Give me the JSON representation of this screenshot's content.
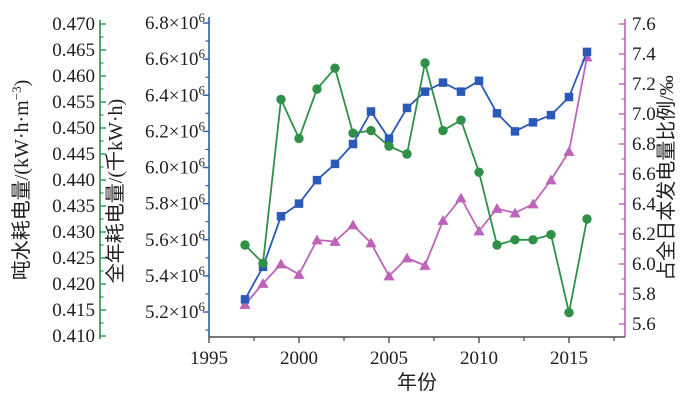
{
  "figure": {
    "background": "#ffffff",
    "text_color": "#1f1f1f",
    "bottom_axis_color": "#4d4d4d"
  },
  "chart_data": {
    "type": "line",
    "title": "",
    "grid": false,
    "legend": false,
    "xlabel": "年份",
    "x_axis": {
      "min": 1995,
      "max": 2018.1,
      "major_ticks": [
        1995,
        2000,
        2005,
        2010,
        2015
      ],
      "tick_labels": [
        "1995",
        "2000",
        "2005",
        "2010",
        "2015"
      ],
      "minor_interval": 2.5
    },
    "years": [
      1997,
      1998,
      1999,
      2000,
      2001,
      2002,
      2003,
      2004,
      2005,
      2006,
      2007,
      2008,
      2009,
      2010,
      2011,
      2012,
      2013,
      2014,
      2015,
      2016
    ],
    "axes": {
      "left_outer": {
        "title_parts": [
          [
            "吨水耗电量/(kW·h·m",
            false
          ],
          [
            "−3",
            true
          ],
          [
            ")",
            false
          ]
        ],
        "min": 0.41,
        "max": 0.47,
        "step": 0.005,
        "decimals": 3,
        "color": "#2f9048"
      },
      "left_inner": {
        "title_parts": [
          [
            "全年耗电量/(千kW·h)",
            false
          ]
        ],
        "min": 5.2,
        "max": 6.8,
        "step": 0.2,
        "decimals": 1,
        "scale_suffix": "×10",
        "exponent": "6",
        "color": "#2b59b7"
      },
      "right": {
        "title_parts": [
          [
            "占全日本发电量比例/‰",
            false
          ]
        ],
        "min": 5.6,
        "max": 7.6,
        "step": 0.2,
        "decimals": 1,
        "color": "#bd63ba"
      }
    },
    "series": [
      {
        "id": "share-of-japan-generation",
        "name": "占全日本发电量比例",
        "axis": "right",
        "marker": "triangle",
        "color": "#bd63ba",
        "values": [
          5.73,
          5.87,
          6.0,
          5.93,
          6.16,
          6.15,
          6.26,
          6.14,
          5.92,
          6.04,
          5.99,
          6.29,
          6.44,
          6.22,
          6.37,
          6.34,
          6.4,
          6.56,
          6.75,
          7.38
        ]
      },
      {
        "id": "annual-power-consumption",
        "name": "全年耗电量",
        "axis": "left_inner",
        "marker": "square",
        "color": "#2b59b7",
        "values": [
          5.27,
          5.45,
          5.73,
          5.8,
          5.93,
          6.02,
          6.13,
          6.31,
          6.16,
          6.33,
          6.42,
          6.47,
          6.42,
          6.48,
          6.3,
          6.2,
          6.25,
          6.29,
          6.39,
          6.64
        ]
      },
      {
        "id": "power-per-ton-water",
        "name": "吨水耗电量",
        "axis": "left_outer",
        "marker": "circle",
        "color": "#2f9048",
        "values": [
          0.4275,
          0.424,
          0.4555,
          0.448,
          0.4575,
          0.4615,
          0.449,
          0.4495,
          0.4465,
          0.445,
          0.4625,
          0.4495,
          0.4515,
          0.4415,
          0.4275,
          0.4285,
          0.4285,
          0.4295,
          0.4145,
          0.4325
        ]
      }
    ]
  }
}
